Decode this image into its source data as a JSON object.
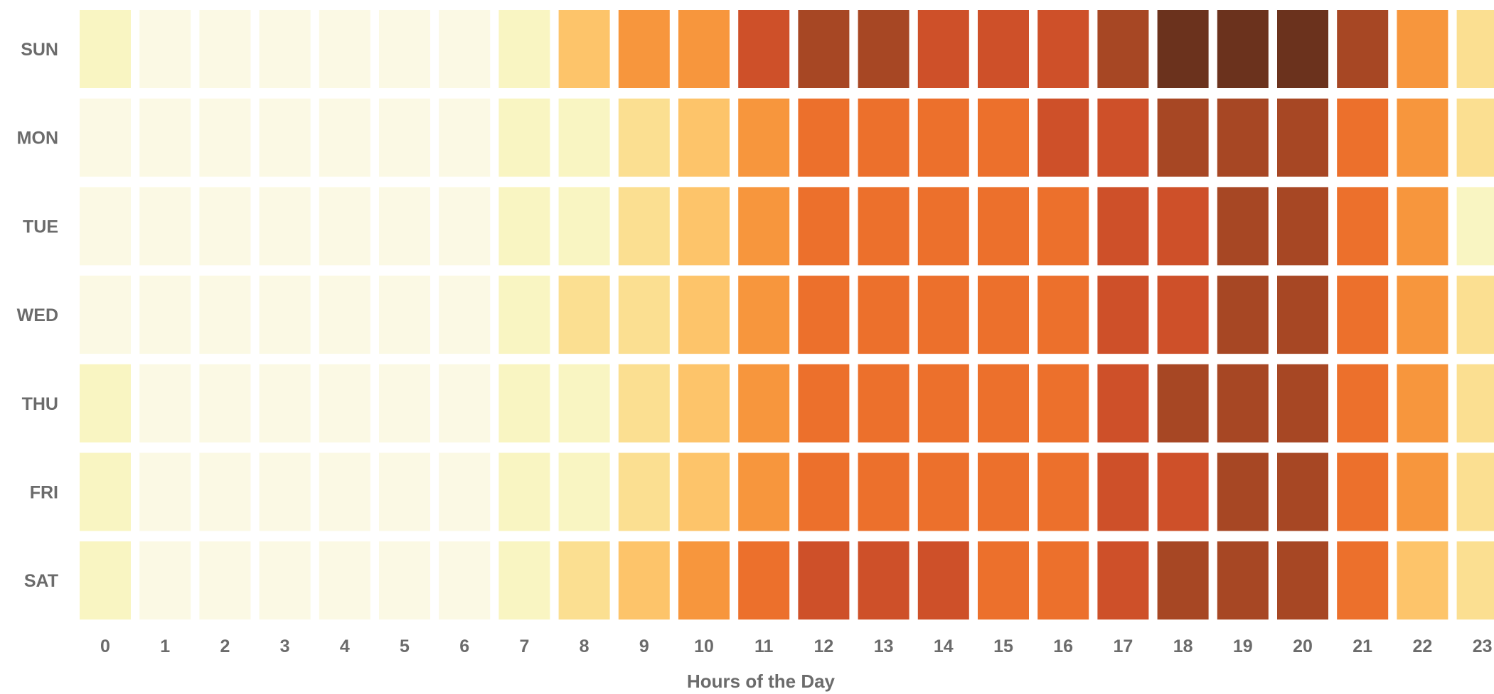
{
  "chart_data": {
    "type": "heatmap",
    "xlabel": "Hours of the Day",
    "x": [
      "0",
      "1",
      "2",
      "3",
      "4",
      "5",
      "6",
      "7",
      "8",
      "9",
      "10",
      "11",
      "12",
      "13",
      "14",
      "15",
      "16",
      "17",
      "18",
      "19",
      "20",
      "21",
      "22",
      "23"
    ],
    "y": [
      "SUN",
      "MON",
      "TUE",
      "WED",
      "THU",
      "FRI",
      "SAT"
    ],
    "color_scale": [
      "#fbf9e4",
      "#f9f5c2",
      "#fbdf91",
      "#fdc46a",
      "#f7963d",
      "#ec702c",
      "#ce5029",
      "#a74724",
      "#6b321d"
    ],
    "values": [
      [
        1,
        0,
        0,
        0,
        0,
        0,
        0,
        1,
        3,
        4,
        4,
        6,
        7,
        7,
        6,
        6,
        6,
        7,
        8,
        8,
        8,
        7,
        4,
        2
      ],
      [
        0,
        0,
        0,
        0,
        0,
        0,
        0,
        1,
        1,
        2,
        3,
        4,
        5,
        5,
        5,
        5,
        6,
        6,
        7,
        7,
        7,
        5,
        4,
        2
      ],
      [
        0,
        0,
        0,
        0,
        0,
        0,
        0,
        1,
        1,
        2,
        3,
        4,
        5,
        5,
        5,
        5,
        5,
        6,
        6,
        7,
        7,
        5,
        4,
        1
      ],
      [
        0,
        0,
        0,
        0,
        0,
        0,
        0,
        1,
        2,
        2,
        3,
        4,
        5,
        5,
        5,
        5,
        5,
        6,
        6,
        7,
        7,
        5,
        4,
        2
      ],
      [
        1,
        0,
        0,
        0,
        0,
        0,
        0,
        1,
        1,
        2,
        3,
        4,
        5,
        5,
        5,
        5,
        5,
        6,
        7,
        7,
        7,
        5,
        4,
        2
      ],
      [
        1,
        0,
        0,
        0,
        0,
        0,
        0,
        1,
        1,
        2,
        3,
        4,
        5,
        5,
        5,
        5,
        5,
        6,
        6,
        7,
        7,
        5,
        4,
        2
      ],
      [
        1,
        0,
        0,
        0,
        0,
        0,
        0,
        1,
        2,
        3,
        4,
        5,
        6,
        6,
        6,
        5,
        5,
        6,
        7,
        7,
        7,
        5,
        3,
        2
      ]
    ]
  }
}
